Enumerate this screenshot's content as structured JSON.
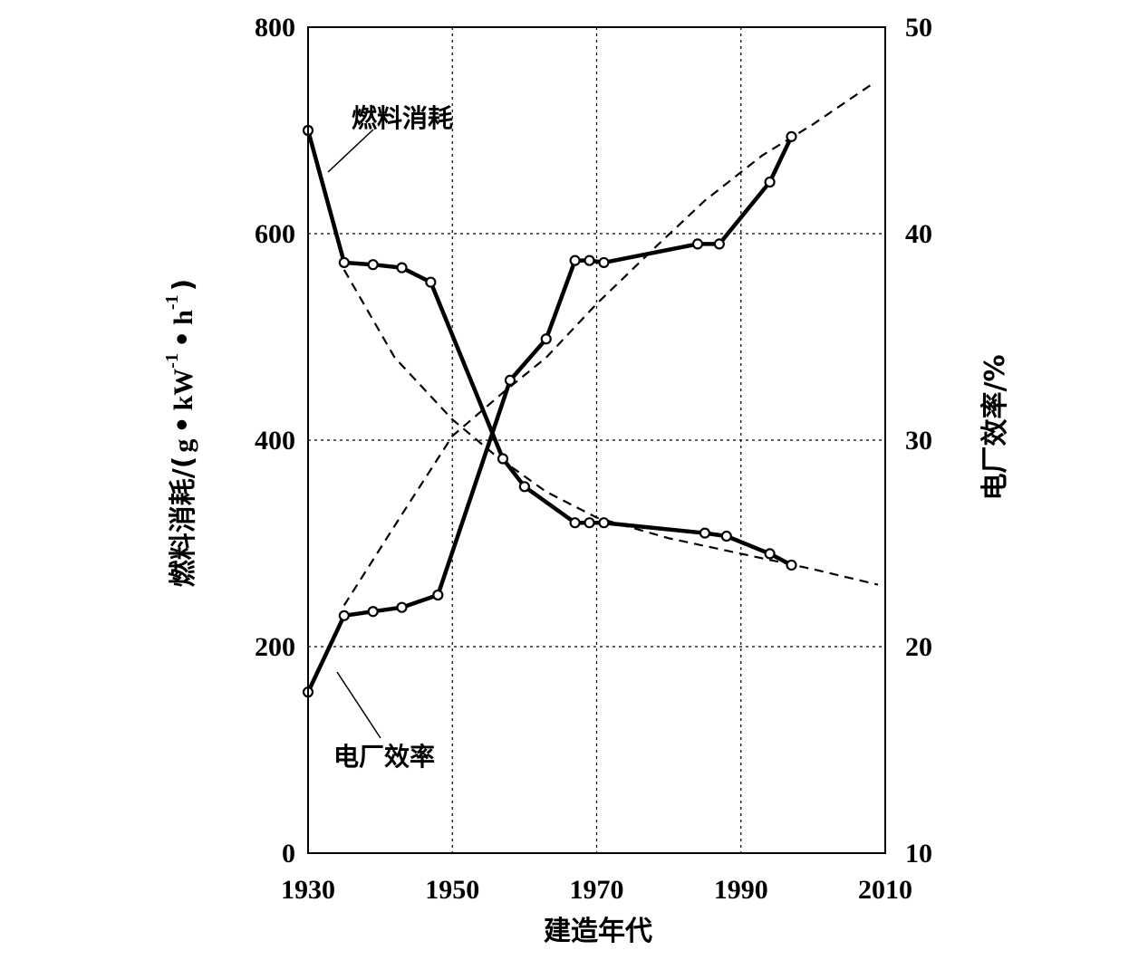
{
  "chart_data": {
    "type": "line",
    "xlabel": "建造年代",
    "ylabel_left": {
      "name": "燃料消耗",
      "paren_open": "/(",
      "g": "g",
      "dot": "•",
      "kw": "kW",
      "h": "h",
      "exp": "-1",
      "paren_close": ")"
    },
    "ylabel_right": "电厂效率/%",
    "x_ticks": [
      "1930",
      "1950",
      "1970",
      "1990",
      "2010"
    ],
    "y_left_ticks": [
      "0",
      "200",
      "400",
      "600",
      "800"
    ],
    "y_right_ticks": [
      "10",
      "20",
      "30",
      "40",
      "50"
    ],
    "xlim": [
      1930,
      2010
    ],
    "ylim_left": [
      0,
      800
    ],
    "ylim_right": [
      10,
      50
    ],
    "grid": true,
    "series": [
      {
        "name": "燃料消耗",
        "axis": "left",
        "style": "solid-markers",
        "x": [
          1930,
          1935,
          1939,
          1943,
          1947,
          1957,
          1960,
          1967,
          1969,
          1971,
          1985,
          1988,
          1994,
          1997
        ],
        "y": [
          700,
          572,
          570,
          567,
          553,
          382,
          355,
          320,
          320,
          320,
          310,
          307,
          290,
          279
        ]
      },
      {
        "name": "电厂效率",
        "axis": "right",
        "style": "solid-markers",
        "x": [
          1930,
          1935,
          1939,
          1943,
          1948,
          1958,
          1963,
          1967,
          1969,
          1971,
          1984,
          1987,
          1994,
          1997
        ],
        "y": [
          17.8,
          21.5,
          21.7,
          21.9,
          22.5,
          32.9,
          34.9,
          38.7,
          38.7,
          38.6,
          39.5,
          39.5,
          42.5,
          44.7
        ]
      },
      {
        "axis": "left",
        "style": "dashed",
        "x": [
          1935,
          1942,
          1950,
          1956,
          1963,
          1970,
          1980,
          1990,
          2000,
          2009
        ],
        "y": [
          565,
          480,
          420,
          385,
          350,
          325,
          305,
          290,
          275,
          260
        ]
      },
      {
        "axis": "right",
        "style": "dashed",
        "x": [
          1935,
          1943,
          1950,
          1957,
          1963,
          1970,
          1978,
          1985,
          1993,
          2000,
          2008
        ],
        "y": [
          22.0,
          26.4,
          30.2,
          32.3,
          34.0,
          36.6,
          39.3,
          41.6,
          43.8,
          45.3,
          47.2
        ]
      }
    ]
  }
}
